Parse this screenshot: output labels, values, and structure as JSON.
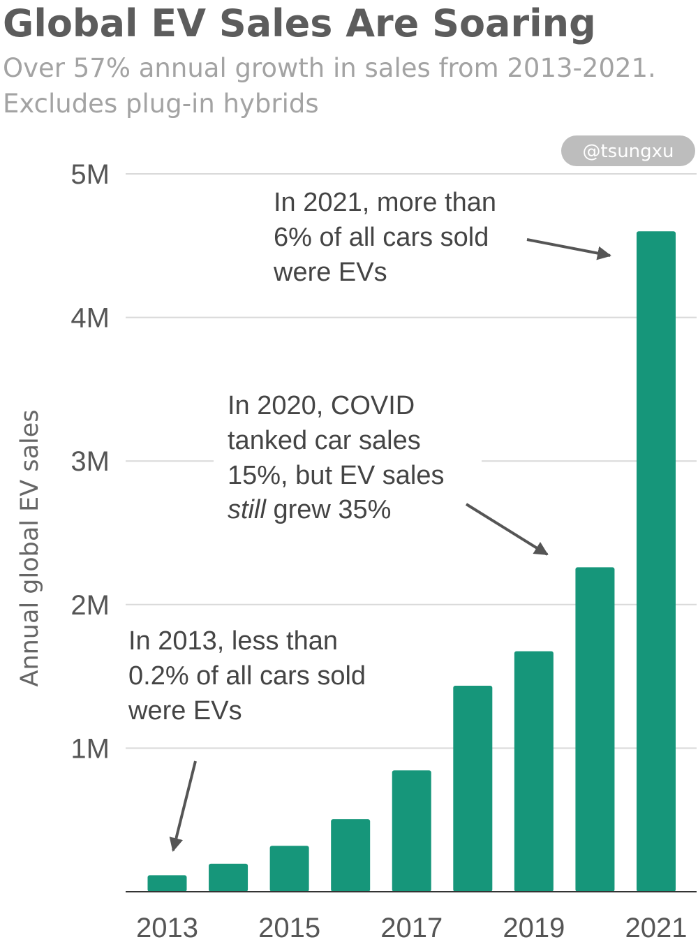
{
  "chart_data": {
    "type": "bar",
    "title": "Global EV Sales Are Soaring",
    "subtitle_lines": [
      "Over 57% annual growth in sales from 2013-2021.",
      "Excludes plug-in hybrids"
    ],
    "ylabel": "Annual global EV sales",
    "xlabel": "",
    "categories": [
      "2013",
      "2014",
      "2015",
      "2016",
      "2017",
      "2018",
      "2019",
      "2020",
      "2021"
    ],
    "x_tick_labels": [
      "2013",
      "2015",
      "2017",
      "2019",
      "2021"
    ],
    "values": [
      115000,
      195000,
      320000,
      505000,
      845000,
      1435000,
      1675000,
      2260000,
      4600000
    ],
    "ylim": [
      0,
      5000000
    ],
    "y_ticks": [
      {
        "value": 1000000,
        "label": "1M"
      },
      {
        "value": 2000000,
        "label": "2M"
      },
      {
        "value": 3000000,
        "label": "3M"
      },
      {
        "value": 4000000,
        "label": "4M"
      },
      {
        "value": 5000000,
        "label": "5M"
      }
    ],
    "grid": true,
    "bar_color": "#16967a",
    "grid_color": "#d9d9d9",
    "annotations": [
      {
        "lines": [
          "In 2021, more than",
          "6% of all cars sold",
          "were EVs"
        ],
        "target": "2021"
      },
      {
        "lines": [
          "In 2020, COVID",
          "tanked car sales",
          "15%, but EV sales"
        ],
        "last_line_italic": "still",
        "last_line_rest": " grew 35%",
        "target": "2020"
      },
      {
        "lines": [
          "In 2013, less than",
          "0.2% of all cars sold",
          "were EVs"
        ],
        "target": "2013"
      }
    ],
    "watermark": "@tsungxu"
  }
}
